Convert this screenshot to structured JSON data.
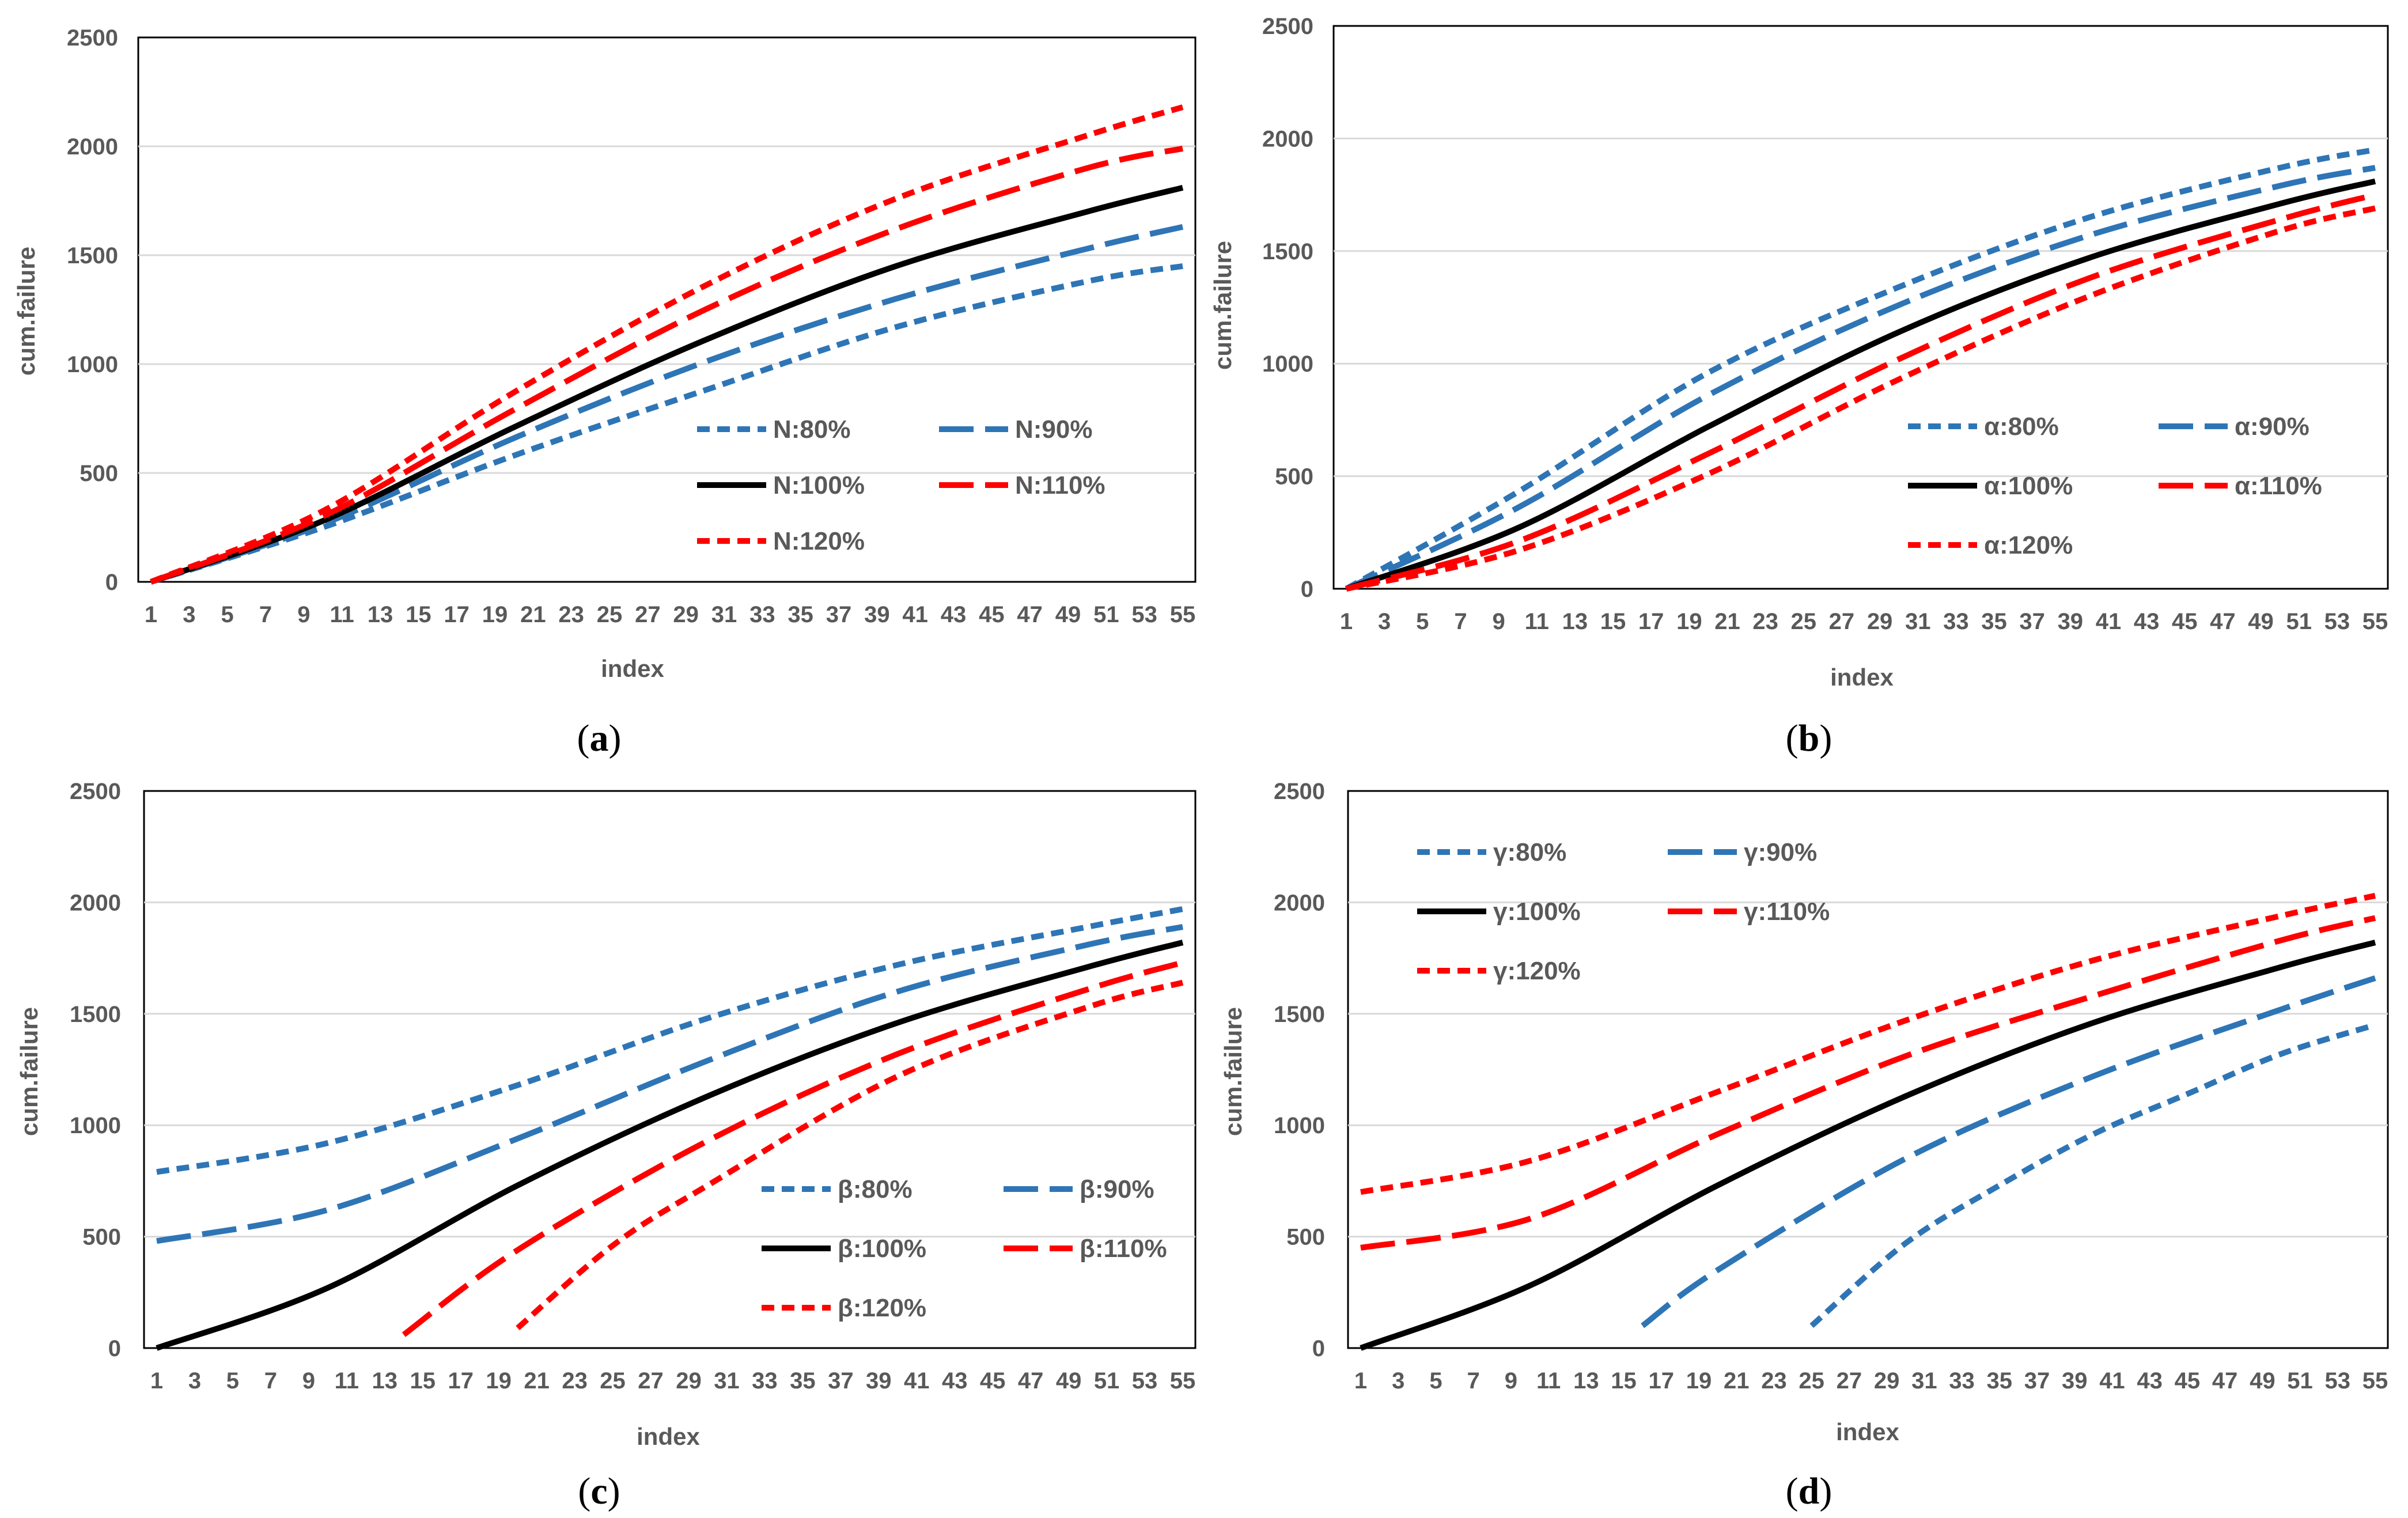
{
  "colors": {
    "blue": "#2e75b6",
    "black": "#000000",
    "red": "#ff0000",
    "grid": "#d9d9d9",
    "text": "#595959"
  },
  "chart_data": [
    {
      "panel": "(a)",
      "type": "line",
      "xlabel": "index",
      "ylabel": "cum.failure",
      "ylim": [
        0,
        2500
      ],
      "yticks": [
        0,
        500,
        1000,
        1500,
        2000,
        2500
      ],
      "xticks": [
        1,
        3,
        5,
        7,
        9,
        11,
        13,
        15,
        17,
        19,
        21,
        23,
        25,
        27,
        29,
        31,
        33,
        35,
        37,
        39,
        41,
        43,
        45,
        47,
        49,
        51,
        53,
        55
      ],
      "legend_position": "bottom-right",
      "series": [
        {
          "name": "N:80%",
          "color": "#2e75b6",
          "dash": "short-dash",
          "x": [
            1,
            10,
            20,
            30,
            40,
            50,
            55
          ],
          "values": [
            0,
            250,
            580,
            880,
            1170,
            1380,
            1450
          ]
        },
        {
          "name": "N:90%",
          "color": "#2e75b6",
          "dash": "long-dash",
          "x": [
            1,
            10,
            20,
            30,
            40,
            50,
            55
          ],
          "values": [
            0,
            265,
            660,
            1010,
            1300,
            1530,
            1630
          ]
        },
        {
          "name": "N:100%",
          "color": "#000000",
          "dash": "solid",
          "x": [
            1,
            10,
            20,
            30,
            40,
            50,
            55
          ],
          "values": [
            0,
            280,
            710,
            1110,
            1450,
            1700,
            1810
          ]
        },
        {
          "name": "N:110%",
          "color": "#ff0000",
          "dash": "long-dash",
          "x": [
            1,
            10,
            20,
            30,
            40,
            50,
            55
          ],
          "values": [
            0,
            300,
            790,
            1250,
            1620,
            1900,
            1990
          ]
        },
        {
          "name": "N:120%",
          "color": "#ff0000",
          "dash": "short-dash",
          "x": [
            1,
            10,
            20,
            30,
            40,
            50,
            55
          ],
          "values": [
            0,
            325,
            870,
            1360,
            1760,
            2050,
            2180
          ]
        }
      ]
    },
    {
      "panel": "(b)",
      "type": "line",
      "xlabel": "index",
      "ylabel": "cum.failure",
      "ylim": [
        0,
        2500
      ],
      "yticks": [
        0,
        500,
        1000,
        1500,
        2000,
        2500
      ],
      "xticks": [
        1,
        3,
        5,
        7,
        9,
        11,
        13,
        15,
        17,
        19,
        21,
        23,
        25,
        27,
        29,
        31,
        33,
        35,
        37,
        39,
        41,
        43,
        45,
        47,
        49,
        51,
        53,
        55
      ],
      "legend_position": "bottom-right",
      "series": [
        {
          "name": "α:80%",
          "color": "#2e75b6",
          "dash": "short-dash",
          "x": [
            1,
            10,
            20,
            30,
            40,
            50,
            55
          ],
          "values": [
            0,
            430,
            960,
            1340,
            1650,
            1870,
            1950
          ]
        },
        {
          "name": "α:90%",
          "color": "#2e75b6",
          "dash": "long-dash",
          "x": [
            1,
            10,
            20,
            30,
            40,
            50,
            55
          ],
          "values": [
            0,
            360,
            860,
            1260,
            1570,
            1790,
            1870
          ]
        },
        {
          "name": "α:100%",
          "color": "#000000",
          "dash": "solid",
          "x": [
            1,
            10,
            20,
            30,
            40,
            50,
            55
          ],
          "values": [
            0,
            270,
            720,
            1140,
            1470,
            1710,
            1810
          ]
        },
        {
          "name": "α:110%",
          "color": "#ff0000",
          "dash": "long-dash",
          "x": [
            1,
            10,
            20,
            30,
            40,
            50,
            55
          ],
          "values": [
            0,
            210,
            600,
            1020,
            1380,
            1640,
            1750
          ]
        },
        {
          "name": "α:120%",
          "color": "#ff0000",
          "dash": "short-dash",
          "x": [
            1,
            10,
            20,
            30,
            40,
            50,
            55
          ],
          "values": [
            0,
            170,
            510,
            930,
            1300,
            1590,
            1690
          ]
        }
      ]
    },
    {
      "panel": "(c)",
      "type": "line",
      "xlabel": "index",
      "ylabel": "cum.failure",
      "ylim": [
        0,
        2500
      ],
      "yticks": [
        0,
        500,
        1000,
        1500,
        2000,
        2500
      ],
      "xticks": [
        1,
        3,
        5,
        7,
        9,
        11,
        13,
        15,
        17,
        19,
        21,
        23,
        25,
        27,
        29,
        31,
        33,
        35,
        37,
        39,
        41,
        43,
        45,
        47,
        49,
        51,
        53,
        55
      ],
      "legend_position": "bottom-right",
      "series": [
        {
          "name": "β:80%",
          "color": "#2e75b6",
          "dash": "short-dash",
          "x": [
            1,
            10,
            20,
            30,
            40,
            50,
            55
          ],
          "values": [
            790,
            920,
            1180,
            1480,
            1720,
            1890,
            1970
          ]
        },
        {
          "name": "β:90%",
          "color": "#2e75b6",
          "dash": "long-dash",
          "x": [
            1,
            10,
            20,
            30,
            40,
            50,
            55
          ],
          "values": [
            480,
            620,
            940,
            1290,
            1600,
            1810,
            1890
          ]
        },
        {
          "name": "β:100%",
          "color": "#000000",
          "dash": "solid",
          "x": [
            1,
            10,
            20,
            30,
            40,
            50,
            55
          ],
          "values": [
            0,
            270,
            730,
            1130,
            1460,
            1710,
            1820
          ]
        },
        {
          "name": "β:110%",
          "color": "#ff0000",
          "dash": "long-dash",
          "x": [
            14,
            20,
            30,
            40,
            50,
            55
          ],
          "values": [
            60,
            440,
            930,
            1320,
            1610,
            1730
          ]
        },
        {
          "name": "β:120%",
          "color": "#ff0000",
          "dash": "short-dash",
          "x": [
            20,
            25,
            30,
            40,
            50,
            55
          ],
          "values": [
            90,
            460,
            730,
            1220,
            1530,
            1640
          ]
        }
      ]
    },
    {
      "panel": "(d)",
      "type": "line",
      "xlabel": "index",
      "ylabel": "cum.failure",
      "ylim": [
        0,
        2500
      ],
      "yticks": [
        0,
        500,
        1000,
        1500,
        2000,
        2500
      ],
      "xticks": [
        1,
        3,
        5,
        7,
        9,
        11,
        13,
        15,
        17,
        19,
        21,
        23,
        25,
        27,
        29,
        31,
        33,
        35,
        37,
        39,
        41,
        43,
        45,
        47,
        49,
        51,
        53,
        55
      ],
      "legend_position": "top-left",
      "series": [
        {
          "name": "γ:80%",
          "color": "#2e75b6",
          "dash": "short-dash",
          "x": [
            25,
            30,
            35,
            40,
            45,
            50,
            55
          ],
          "values": [
            100,
            470,
            730,
            960,
            1140,
            1320,
            1450
          ]
        },
        {
          "name": "γ:90%",
          "color": "#2e75b6",
          "dash": "long-dash",
          "x": [
            16,
            20,
            30,
            40,
            50,
            55
          ],
          "values": [
            100,
            350,
            850,
            1220,
            1520,
            1660
          ]
        },
        {
          "name": "γ:100%",
          "color": "#000000",
          "dash": "solid",
          "x": [
            1,
            10,
            20,
            30,
            40,
            50,
            55
          ],
          "values": [
            0,
            280,
            730,
            1130,
            1460,
            1710,
            1820
          ]
        },
        {
          "name": "γ:110%",
          "color": "#ff0000",
          "dash": "long-dash",
          "x": [
            1,
            10,
            20,
            30,
            40,
            50,
            55
          ],
          "values": [
            450,
            580,
            960,
            1310,
            1580,
            1830,
            1930
          ]
        },
        {
          "name": "γ:120%",
          "color": "#ff0000",
          "dash": "short-dash",
          "x": [
            1,
            10,
            20,
            30,
            40,
            50,
            55
          ],
          "values": [
            700,
            840,
            1150,
            1470,
            1740,
            1940,
            2030
          ]
        }
      ]
    }
  ]
}
